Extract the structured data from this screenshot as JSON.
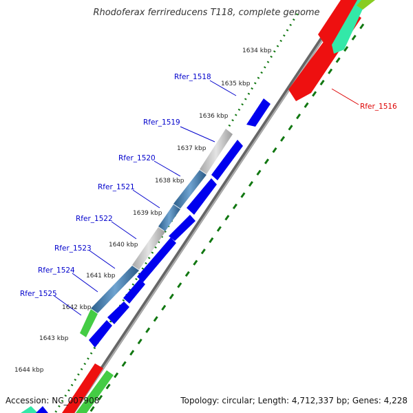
{
  "title": "Rhodoferax ferrireducens T118, complete genome",
  "footer": {
    "accession": "Accession: NC_007908",
    "stats": "Topology: circular; Length: 4,712,337 bp; Genes: 4,228"
  },
  "colors": {
    "forward_gene": "#0000ff",
    "reverse_gene": "#ff0000",
    "label_blue": "#0000cc",
    "label_red": "#dd0000",
    "tick_dots": "#117711",
    "backbone": "#888888",
    "gray_block": "#c8c8c8",
    "steelblue_block": "#4a86b8",
    "green_block": "#44cc44",
    "aqua_block": "#33e8a8"
  },
  "ticks": [
    "1634 kbp",
    "1635 kbp",
    "1636 kbp",
    "1637 kbp",
    "1638 kbp",
    "1639 kbp",
    "1640 kbp",
    "1641 kbp",
    "1642 kbp",
    "1643 kbp",
    "1644 kbp"
  ],
  "gene_labels": [
    {
      "text": "Rfer_1516",
      "strand": "reverse"
    },
    {
      "text": "Rfer_1518",
      "strand": "forward"
    },
    {
      "text": "Rfer_1519",
      "strand": "forward"
    },
    {
      "text": "Rfer_1520",
      "strand": "forward"
    },
    {
      "text": "Rfer_1521",
      "strand": "forward"
    },
    {
      "text": "Rfer_1522",
      "strand": "forward"
    },
    {
      "text": "Rfer_1523",
      "strand": "forward"
    },
    {
      "text": "Rfer_1524",
      "strand": "forward"
    },
    {
      "text": "Rfer_1525",
      "strand": "forward"
    }
  ]
}
